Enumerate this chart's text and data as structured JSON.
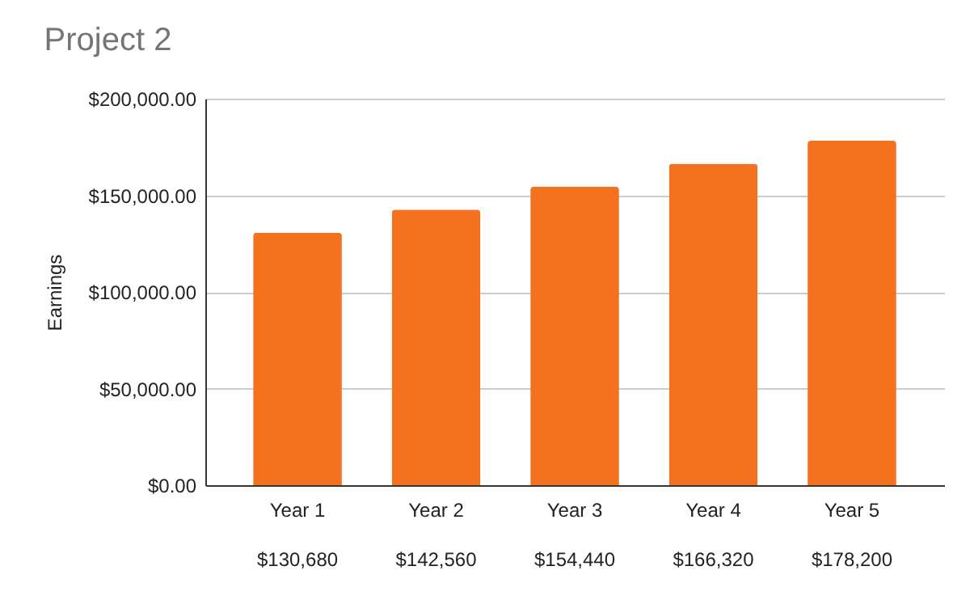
{
  "chart_data": {
    "type": "bar",
    "title": "Project 2",
    "ylabel": "Earnings",
    "categories": [
      "Year 1",
      "Year 2",
      "Year 3",
      "Year 4",
      "Year 5"
    ],
    "values": [
      130680,
      142560,
      154440,
      166320,
      178200
    ],
    "value_labels": [
      "$130,680",
      "$142,560",
      "$154,440",
      "$166,320",
      "$178,200"
    ],
    "color": "#f4711f",
    "ylim": [
      0,
      200000
    ],
    "yticks": [
      {
        "value": 0,
        "label": "$0.00"
      },
      {
        "value": 50000,
        "label": "$50,000.00"
      },
      {
        "value": 100000,
        "label": "$100,000.00"
      },
      {
        "value": 150000,
        "label": "$150,000.00"
      },
      {
        "value": 200000,
        "label": "$200,000.00"
      }
    ],
    "grid": "y"
  }
}
